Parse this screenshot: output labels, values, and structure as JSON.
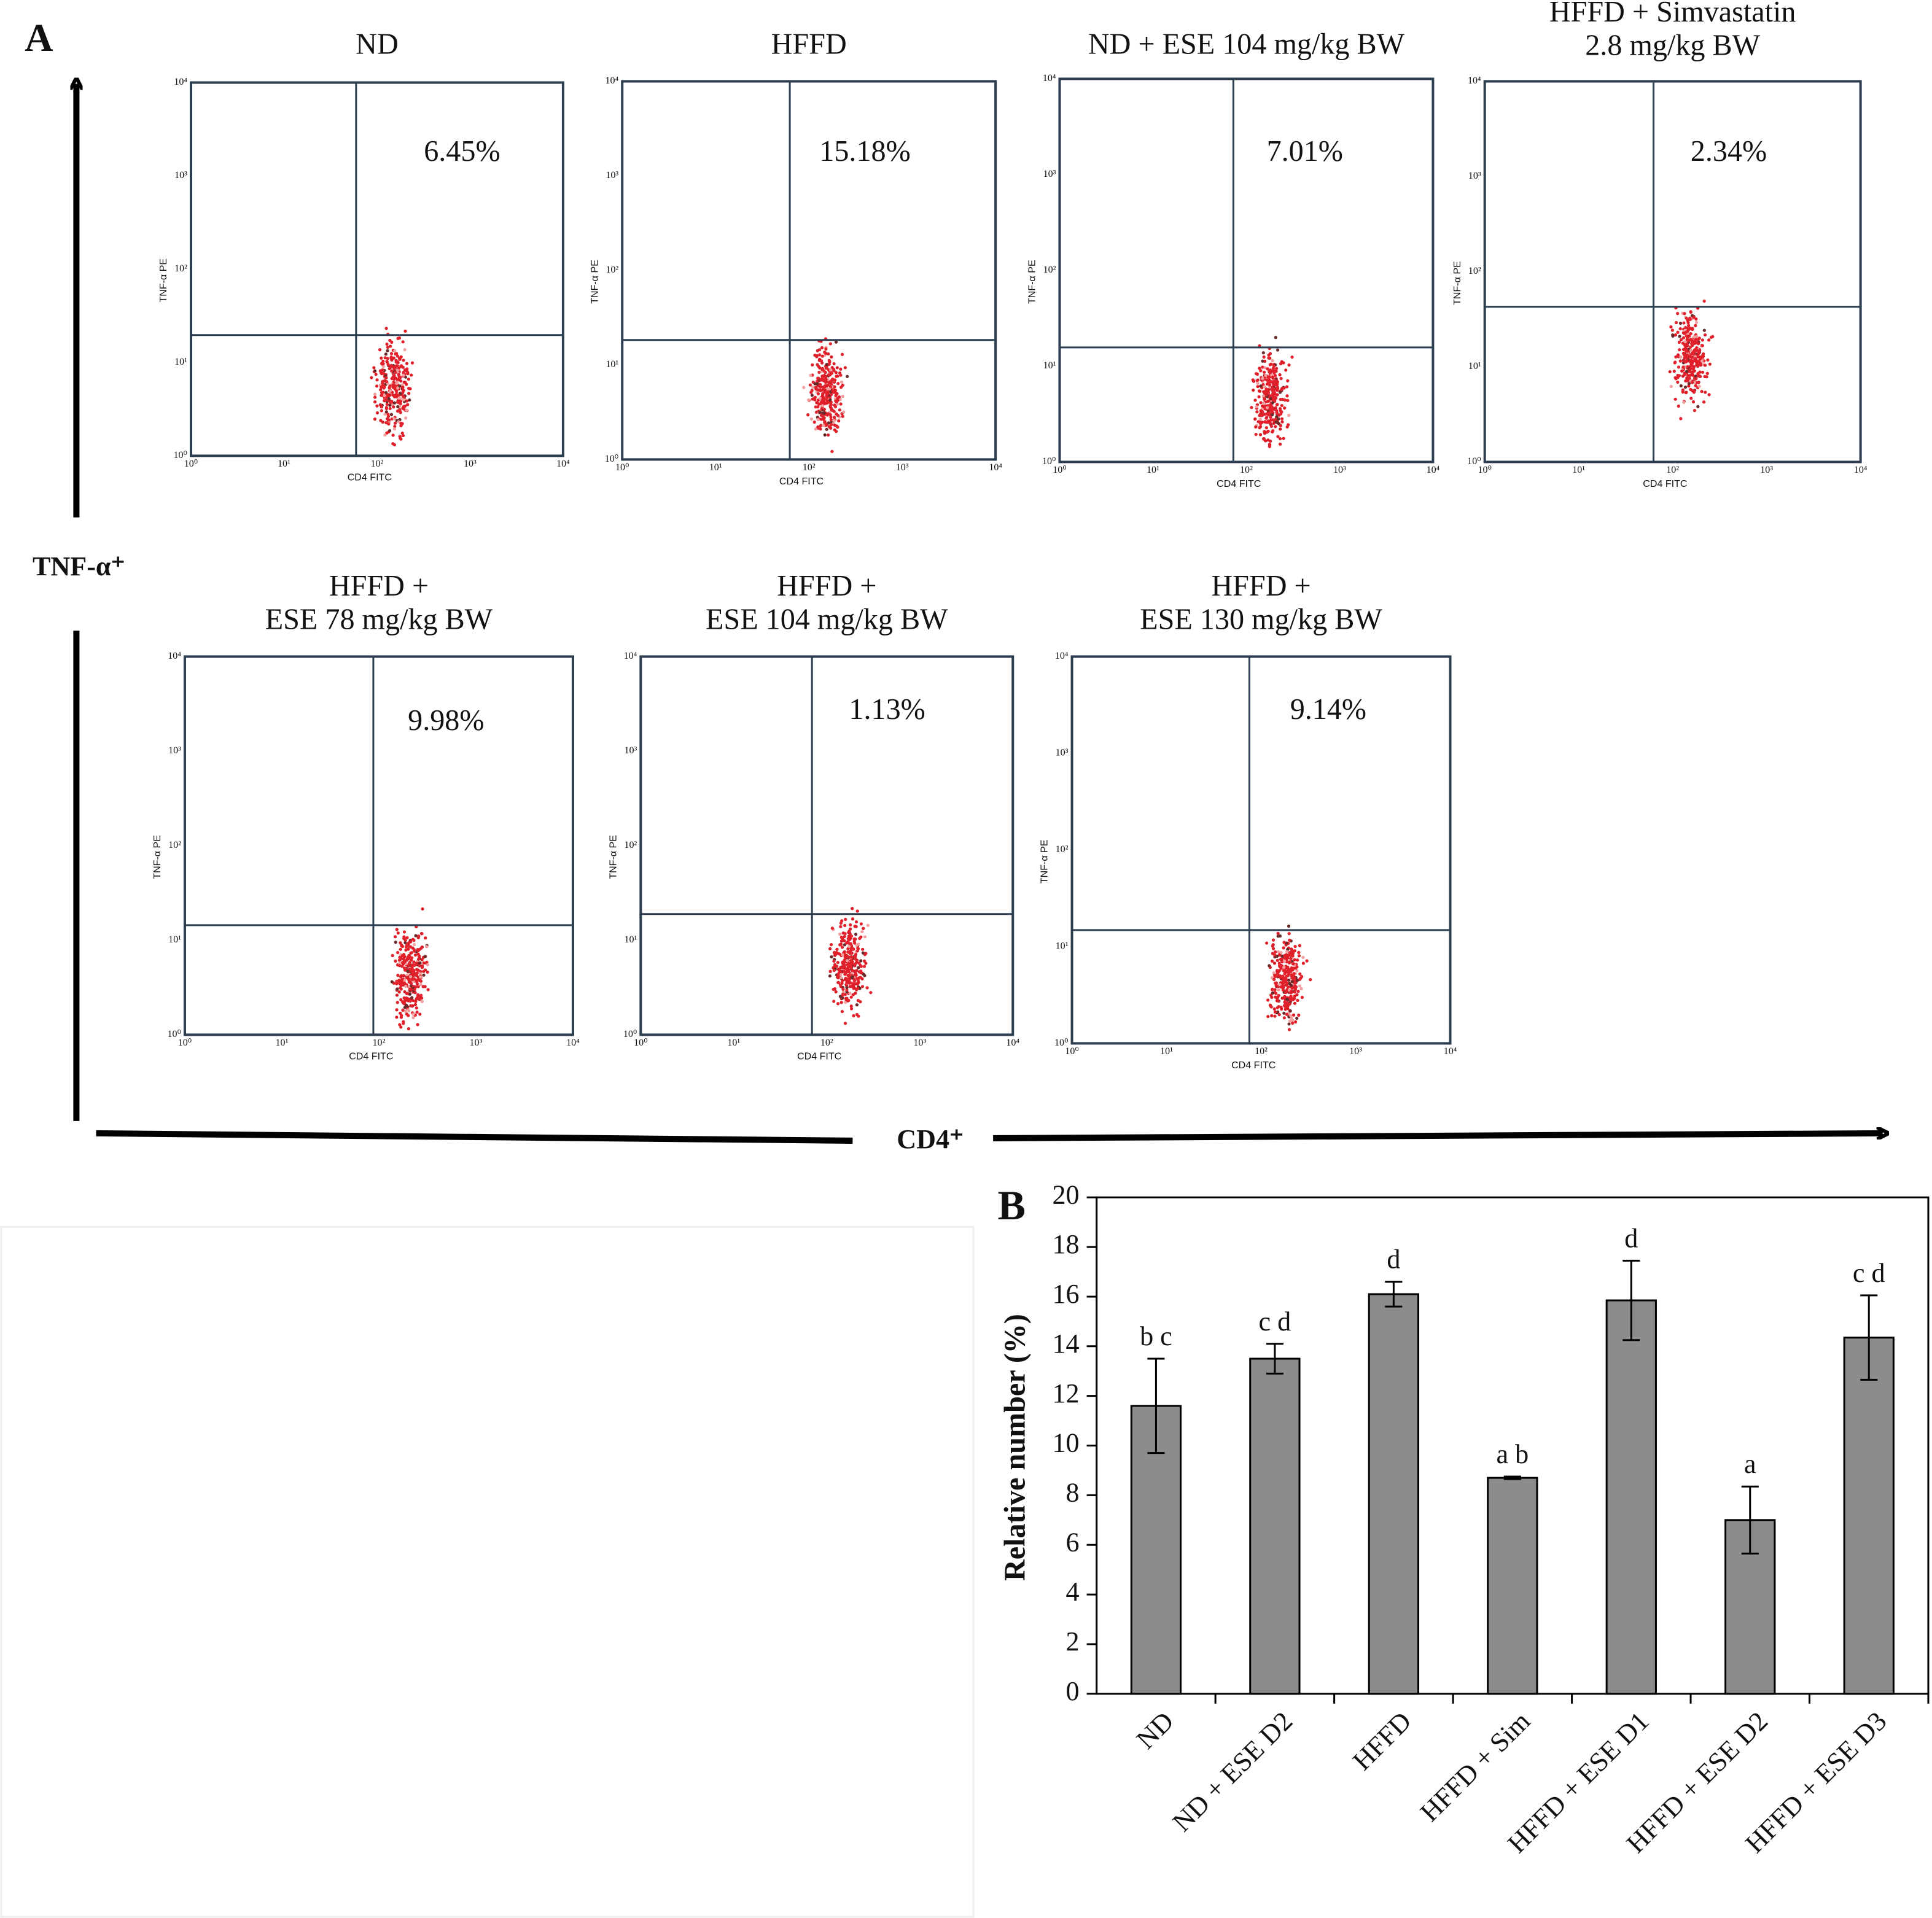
{
  "panel_a": {
    "label": "A",
    "y_axis": "TNF-α⁺",
    "x_axis": "CD4⁺",
    "ticks": [
      "10⁰",
      "10¹",
      "10²",
      "10³",
      "10⁴"
    ],
    "x_label": "CD4 FITC",
    "y_label": "TNF-α PE",
    "plots": [
      {
        "title": [
          "ND"
        ],
        "gate_label": "6.45%"
      },
      {
        "title": [
          "HFFD"
        ],
        "gate_label": "15.18%"
      },
      {
        "title": [
          "ND + ESE 104 mg/kg BW"
        ],
        "gate_label": "7.01%"
      },
      {
        "title": [
          "HFFD + Simvastatin",
          "2.8 mg/kg BW"
        ],
        "gate_label": "2.34%"
      },
      {
        "title": [
          "HFFD +",
          "ESE 78 mg/kg BW"
        ],
        "gate_label": "9.98%"
      },
      {
        "title": [
          "HFFD +",
          "ESE 104 mg/kg BW"
        ],
        "gate_label": "1.13%"
      },
      {
        "title": [
          "HFFD +",
          "ESE 130 mg/kg BW"
        ],
        "gate_label": "9.14%"
      }
    ]
  },
  "chart_data": {
    "type": "bar",
    "label": "B",
    "y_label": "Relative number (%)",
    "categories": [
      "ND",
      "ND + ESE D2",
      "HFFD",
      "HFFD + Sim",
      "HFFD + ESE D1",
      "HFFD + ESE D2",
      "HFFD + ESE D3"
    ],
    "values": [
      11.6,
      13.5,
      16.1,
      8.7,
      15.85,
      7.0,
      14.35
    ],
    "errors": [
      1.9,
      0.6,
      0.5,
      0.05,
      1.6,
      1.35,
      1.7
    ],
    "annotations": [
      "b c",
      "c d",
      "d",
      "a b",
      "d",
      "a",
      "c d"
    ],
    "color": "#8c8c8c",
    "ylim": [
      0,
      20
    ],
    "yticks": [
      0,
      2,
      4,
      6,
      8,
      10,
      12,
      14,
      16,
      18,
      20
    ]
  }
}
